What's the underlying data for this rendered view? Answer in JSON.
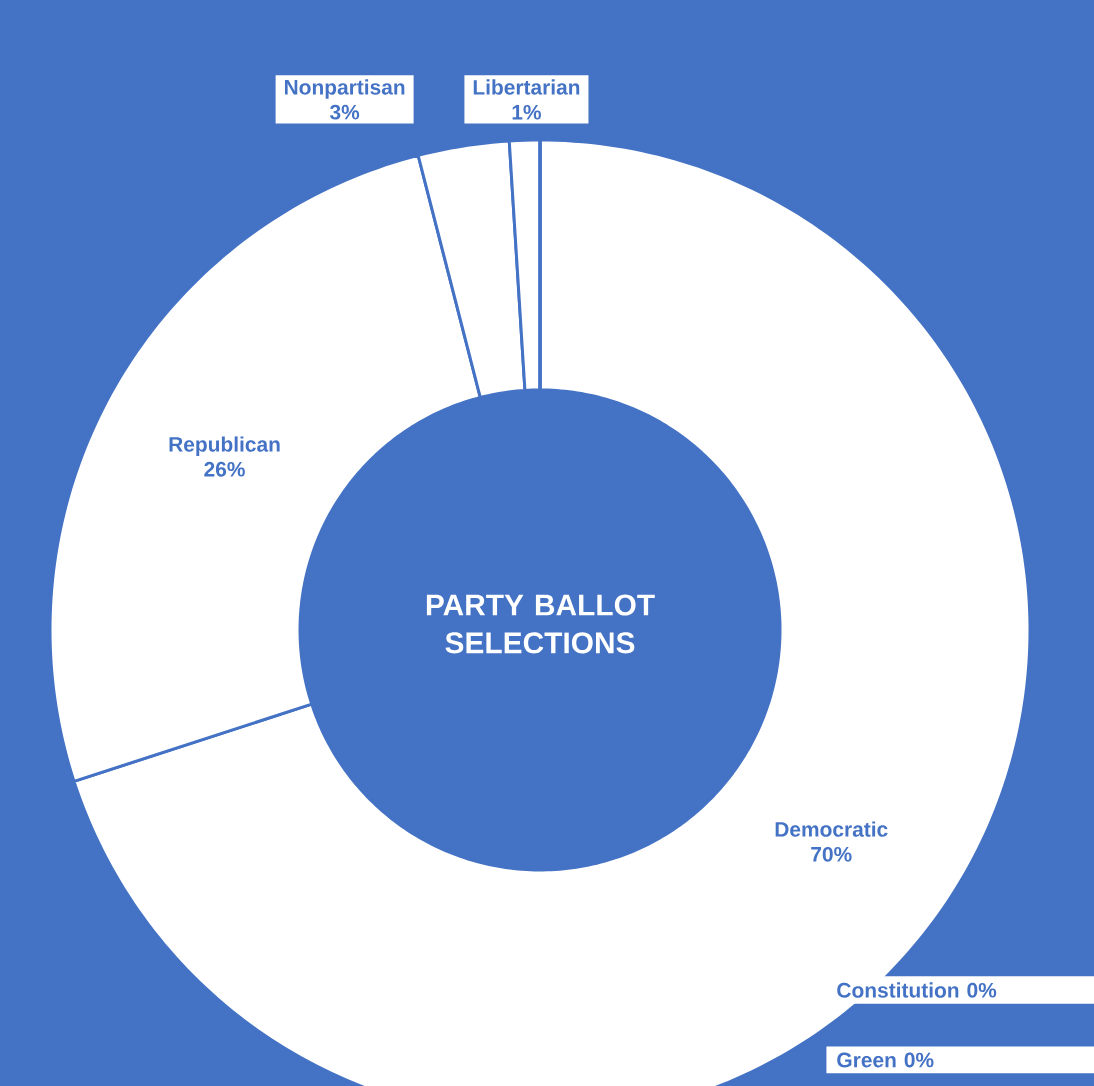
{
  "chart_data": {
    "type": "donut",
    "title": "PARTY BALLOT SELECTIONS",
    "categories": [
      "Democratic",
      "Republican",
      "Nonpartisan",
      "Libertarian",
      "Constitution",
      "Green"
    ],
    "values": [
      70,
      26,
      3,
      1,
      0,
      0
    ],
    "colors": [
      "#ffffff",
      "#ffffff",
      "#ffffff",
      "#ffffff",
      "#ffffff",
      "#ffffff"
    ],
    "value_labels": [
      "70%",
      "26%",
      "3%",
      "1%",
      "0%",
      "0%"
    ]
  }
}
